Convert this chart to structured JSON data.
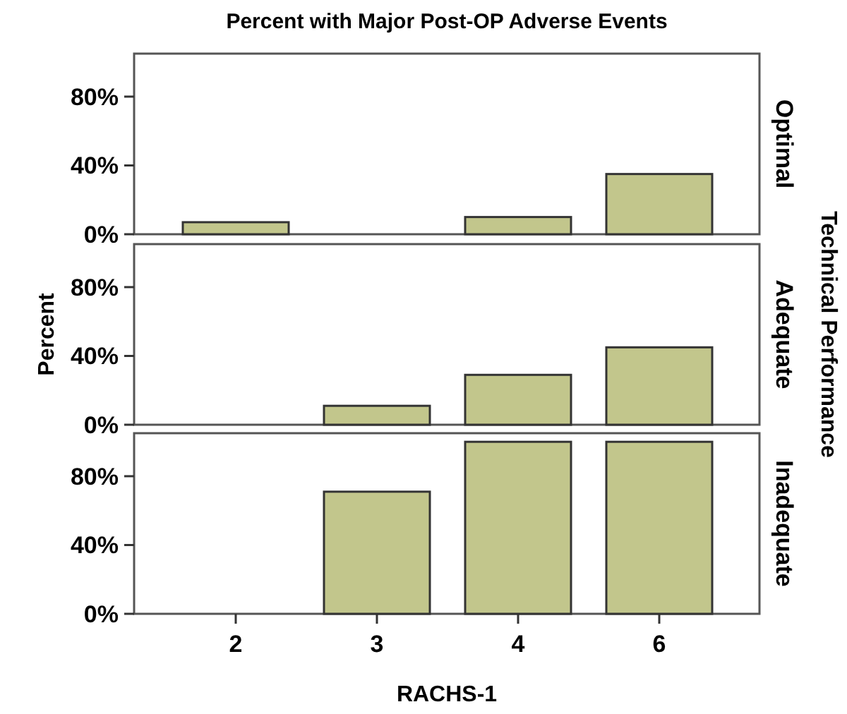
{
  "chart_data": [
    {
      "type": "bar",
      "title": "Percent with Major Post-OP Adverse Events",
      "subtitle": "Optimal",
      "categories": [
        "2",
        "3",
        "4",
        "6"
      ],
      "values": [
        7,
        null,
        10,
        35
      ],
      "color": "#c2c68c",
      "ylim": [
        0,
        105
      ],
      "yticks": [
        {
          "value": 0,
          "label": "0%"
        },
        {
          "value": 40,
          "label": "40%"
        },
        {
          "value": 80,
          "label": "80%"
        }
      ],
      "tick_labels": "y"
    },
    {
      "type": "bar",
      "subtitle": "Adequate",
      "ylabel": "Percent",
      "y2label": "Technical Performance",
      "categories": [
        "2",
        "3",
        "4",
        "6"
      ],
      "values": [
        0,
        11,
        29,
        45
      ],
      "color": "#c2c68c",
      "ylim": [
        0,
        105
      ],
      "yticks": [
        {
          "value": 0,
          "label": "0%"
        },
        {
          "value": 40,
          "label": "40%"
        },
        {
          "value": 80,
          "label": "80%"
        }
      ],
      "tick_labels": "y"
    },
    {
      "type": "bar",
      "subtitle": "Inadequate",
      "xlabel": "RACHS-1",
      "categories": [
        "2",
        "3",
        "4",
        "6"
      ],
      "values": [
        null,
        71,
        100,
        100
      ],
      "color": "#c2c68c",
      "ylim": [
        0,
        105
      ],
      "yticks": [
        {
          "value": 0,
          "label": "0%"
        },
        {
          "value": 40,
          "label": "40%"
        },
        {
          "value": 80,
          "label": "80%"
        }
      ]
    }
  ]
}
